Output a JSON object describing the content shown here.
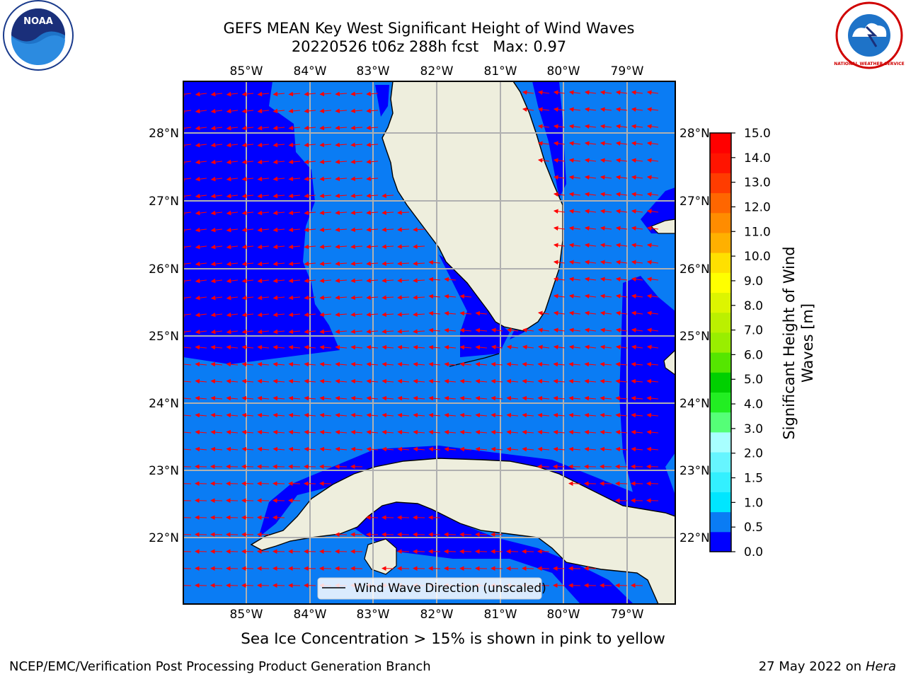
{
  "title": {
    "line1": "GEFS MEAN Key West Significant Height of Wind Waves",
    "line2": "20220526 t06z 288h fcst   Max: 0.97"
  },
  "map": {
    "lon_labels": [
      "85°W",
      "84°W",
      "83°W",
      "82°W",
      "81°W",
      "80°W",
      "79°W"
    ],
    "lat_labels": [
      "28°N",
      "27°N",
      "26°N",
      "25°N",
      "24°N",
      "23°N",
      "22°N"
    ],
    "legend_label": "Wind Wave Direction (unscaled)",
    "colors": {
      "land": "#eeeedd",
      "ocean_low": "#0000ff",
      "ocean_mid": "#0a7cf4",
      "arrow": "#ff0000",
      "grid": "#b0b0b0"
    }
  },
  "colorbar": {
    "title": "Significant Height of Wind Waves [m]",
    "ticks": [
      "15.0",
      "14.0",
      "13.0",
      "12.0",
      "11.0",
      "10.0",
      "9.0",
      "8.0",
      "7.0",
      "6.0",
      "5.0",
      "4.0",
      "3.0",
      "2.0",
      "1.5",
      "1.0",
      "0.5",
      "0.0"
    ],
    "colors_bottom_to_top": [
      "#0000ff",
      "#0a7cf4",
      "#00e6ff",
      "#33f0ff",
      "#66f5ff",
      "#a8ffff",
      "#55ff77",
      "#22ee22",
      "#00d000",
      "#55e600",
      "#99ee00",
      "#bbf000",
      "#ddf500",
      "#ffff00",
      "#ffe000",
      "#ffb000",
      "#ff8c00",
      "#ff6600",
      "#ff3c00",
      "#ff1400",
      "#ff0000"
    ]
  },
  "ice_note": "Sea Ice Concentration > 15% is shown in pink to yellow",
  "footer": {
    "left": "NCEP/EMC/Verification Post Processing Product Generation Branch",
    "right_date": "27 May 2022 on",
    "right_host": "Hera"
  },
  "logos": {
    "noaa": "NOAA",
    "nws": "NATIONAL WEATHER SERVICE"
  }
}
